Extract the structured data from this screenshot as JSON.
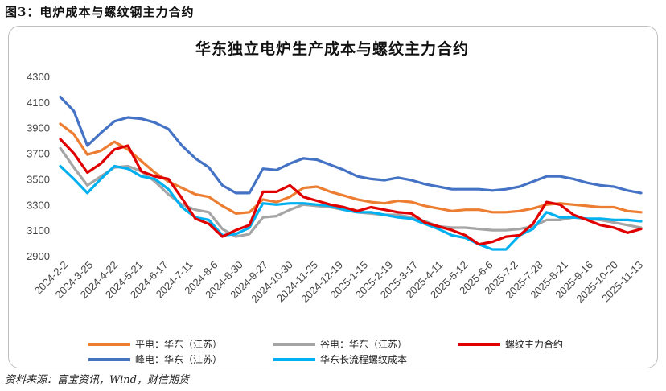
{
  "figure_caption": "图3：电炉成本与螺纹钢主力合约",
  "source_note": "资料来源：富宝资讯，Wind，财信期货",
  "chart_data": {
    "type": "line",
    "title": "华东独立电炉生产成本与螺纹主力合约",
    "xlabel": "",
    "ylabel": "",
    "ylim": [
      2900,
      4300
    ],
    "yticks": [
      2900,
      3100,
      3300,
      3500,
      3700,
      3900,
      4100,
      4300
    ],
    "grid": false,
    "legend_position": "bottom",
    "x_tick_labels": [
      "2024-2-2",
      "2024-3-25",
      "2024-4-22",
      "2024-5-21",
      "2024-6-17",
      "2024-7-11",
      "2024-8-6",
      "2024-8-30",
      "2024-9-27",
      "2024-10-30",
      "2024-11-25",
      "2024-12-19",
      "2025-1-15",
      "2025-2-19",
      "2025-3-17",
      "2025-4-11",
      "2025-5-12",
      "2025-6-6",
      "2025-7-2",
      "2025-7-28",
      "2025-8-21",
      "2025-9-16",
      "2025-10-20",
      "2025-11-13"
    ],
    "series": [
      {
        "name": "平电：华东（江苏）",
        "color": "#ED7D31",
        "values": [
          3930,
          3850,
          3690,
          3720,
          3790,
          3730,
          3640,
          3550,
          3480,
          3430,
          3380,
          3360,
          3290,
          3230,
          3240,
          3340,
          3320,
          3360,
          3430,
          3440,
          3400,
          3370,
          3340,
          3320,
          3310,
          3330,
          3320,
          3290,
          3270,
          3250,
          3260,
          3260,
          3240,
          3240,
          3250,
          3270,
          3300,
          3310,
          3300,
          3290,
          3280,
          3280,
          3250,
          3240
        ]
      },
      {
        "name": "峰电：华东（江苏）",
        "color": "#4472C4",
        "values": [
          4140,
          4030,
          3760,
          3860,
          3950,
          3980,
          3970,
          3940,
          3890,
          3760,
          3660,
          3590,
          3450,
          3390,
          3390,
          3580,
          3570,
          3620,
          3660,
          3650,
          3610,
          3570,
          3520,
          3500,
          3490,
          3510,
          3490,
          3460,
          3440,
          3420,
          3420,
          3420,
          3410,
          3420,
          3440,
          3480,
          3520,
          3520,
          3500,
          3470,
          3450,
          3440,
          3410,
          3390
        ]
      },
      {
        "name": "谷电：华东（江苏）",
        "color": "#A5A5A5",
        "values": [
          3740,
          3590,
          3450,
          3520,
          3590,
          3600,
          3560,
          3480,
          3380,
          3300,
          3260,
          3240,
          3110,
          3050,
          3070,
          3200,
          3210,
          3260,
          3300,
          3290,
          3280,
          3260,
          3240,
          3230,
          3220,
          3220,
          3200,
          3170,
          3130,
          3120,
          3120,
          3110,
          3100,
          3100,
          3110,
          3130,
          3180,
          3180,
          3200,
          3190,
          3180,
          3160,
          3140,
          3120
        ]
      },
      {
        "name": "螺纹主力合约",
        "color": "#E00000",
        "values": [
          3810,
          3700,
          3550,
          3620,
          3730,
          3760,
          3560,
          3520,
          3500,
          3350,
          3190,
          3150,
          3050,
          3100,
          3140,
          3400,
          3400,
          3450,
          3360,
          3330,
          3300,
          3280,
          3250,
          3280,
          3260,
          3240,
          3230,
          3160,
          3130,
          3100,
          3060,
          2990,
          3010,
          3050,
          3060,
          3150,
          3320,
          3300,
          3220,
          3180,
          3140,
          3120,
          3080,
          3110
        ]
      },
      {
        "name": "华东长流程螺纹成本",
        "color": "#00B0F0",
        "values": [
          3600,
          3500,
          3390,
          3500,
          3600,
          3580,
          3520,
          3500,
          3420,
          3280,
          3200,
          3180,
          3060,
          3070,
          3120,
          3310,
          3300,
          3310,
          3310,
          3300,
          3290,
          3260,
          3240,
          3240,
          3220,
          3200,
          3190,
          3150,
          3110,
          3060,
          3040,
          2990,
          2950,
          2950,
          3060,
          3110,
          3240,
          3200,
          3200,
          3190,
          3190,
          3180,
          3180,
          3170
        ]
      }
    ]
  }
}
